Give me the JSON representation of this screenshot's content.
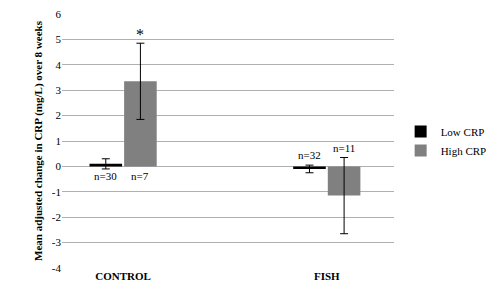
{
  "chart_data": {
    "type": "bar",
    "y_label": "Mean adjusted change in CRP (mg/L) over 8 weeks",
    "categories": [
      "CONTROL",
      "FISH"
    ],
    "series": [
      {
        "name": "Low CRP",
        "color": "#000000",
        "values": [
          0.1,
          -0.1
        ],
        "error": [
          0.2,
          0.15
        ]
      },
      {
        "name": "High CRP",
        "color": "#808080",
        "values": [
          3.35,
          -1.15
        ],
        "error": [
          1.5,
          1.5
        ]
      }
    ],
    "ylim": [
      -4,
      6
    ],
    "yticks": [
      -4,
      -3,
      -2,
      -1,
      0,
      1,
      2,
      3,
      4,
      5,
      6
    ],
    "grid": true,
    "legend": "right",
    "annotations": [
      {
        "text": "n=30",
        "category": 0,
        "series": 0
      },
      {
        "text": "n=7",
        "category": 0,
        "series": 1
      },
      {
        "text": "n=32",
        "category": 1,
        "series": 0
      },
      {
        "text": "n=11",
        "category": 1,
        "series": 1
      },
      {
        "text": "*",
        "category": 0,
        "series": 1
      }
    ]
  }
}
